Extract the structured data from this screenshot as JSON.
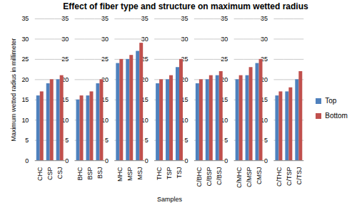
{
  "chart_data": {
    "type": "bar",
    "title": "Effect of fiber type and structure on maximum wetted radius",
    "x_label": "Samples",
    "y_label": "Maximum wetted radius in millimeter",
    "categories": [
      "CHC",
      "CSP",
      "CSJ",
      null,
      "BHC",
      "BSP",
      "BSJ",
      null,
      "MHC",
      "MSP",
      "MSJ",
      null,
      "THC",
      "TSP",
      "TSJ",
      null,
      "C/BHC",
      "C/BSP",
      "C/BSJ",
      null,
      "C/MHC",
      "C/MSP",
      "CMSJ",
      null,
      "C/THC",
      "C/TSP",
      "C/TSJ"
    ],
    "series": [
      {
        "name": "Top",
        "color": "#4f81bd",
        "values": [
          16,
          19,
          20,
          null,
          15,
          16,
          19,
          null,
          24,
          25,
          27,
          null,
          19,
          20,
          23,
          null,
          19,
          20,
          21,
          null,
          20,
          21,
          24,
          null,
          16,
          17,
          20
        ]
      },
      {
        "name": "Bottom",
        "color": "#c0504d",
        "values": [
          17,
          20,
          21,
          null,
          16,
          17,
          20,
          null,
          25,
          26,
          29,
          null,
          20,
          21,
          25,
          null,
          20,
          21,
          22,
          null,
          21,
          23,
          25,
          null,
          17,
          18,
          22
        ]
      }
    ],
    "ylim": [
      0,
      35
    ],
    "yticks": [
      0,
      5,
      10,
      15,
      20,
      25,
      30,
      35
    ],
    "grid": true,
    "legend": "right"
  }
}
